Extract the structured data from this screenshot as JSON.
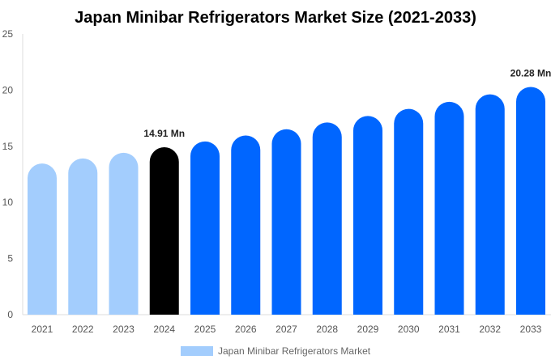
{
  "chart_data": {
    "type": "bar",
    "title": "Japan Minibar Refrigerators Market Size (2021-2033)",
    "categories": [
      "2021",
      "2022",
      "2023",
      "2024",
      "2025",
      "2026",
      "2027",
      "2028",
      "2029",
      "2030",
      "2031",
      "2032",
      "2033"
    ],
    "series": [
      {
        "name": "Japan Minibar Refrigerators Market",
        "values": [
          13.46,
          13.91,
          14.42,
          14.91,
          15.43,
          15.96,
          16.52,
          17.12,
          17.7,
          18.33,
          18.96,
          19.62,
          20.28
        ]
      }
    ],
    "data_labels": [
      {
        "category": "2024",
        "text": "14.91 Mn"
      },
      {
        "category": "2033",
        "text": "20.28 Mn"
      }
    ],
    "ylim": [
      0,
      25
    ],
    "yticks": [
      "0",
      "5",
      "10",
      "15",
      "20",
      "25"
    ],
    "grid": false,
    "legend_position": "bottom",
    "colors": {
      "historical": "#a3cdfd",
      "base_year": "#000000",
      "forecast": "#0066ff"
    },
    "bar_color_by_category": [
      "historical",
      "historical",
      "historical",
      "base_year",
      "forecast",
      "forecast",
      "forecast",
      "forecast",
      "forecast",
      "forecast",
      "forecast",
      "forecast",
      "forecast"
    ]
  }
}
